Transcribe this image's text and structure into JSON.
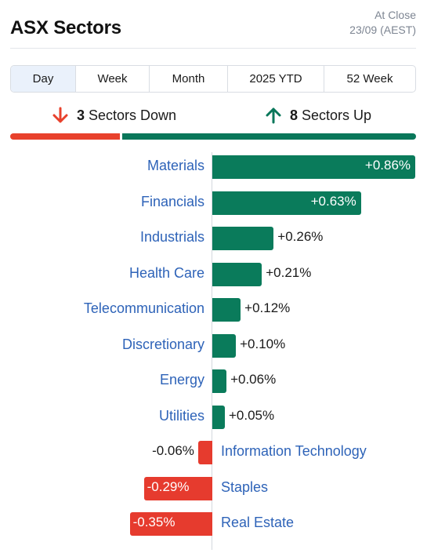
{
  "header": {
    "title": "ASX Sectors",
    "status_line1": "At Close",
    "status_line2": "23/09 (AEST)"
  },
  "tabs": [
    {
      "label": "Day",
      "active": true
    },
    {
      "label": "Week",
      "active": false
    },
    {
      "label": "Month",
      "active": false
    },
    {
      "label": "2025 YTD",
      "active": false
    },
    {
      "label": "52 Week",
      "active": false
    }
  ],
  "summary": {
    "down_count": "3",
    "down_text": "Sectors Down",
    "up_count": "8",
    "up_text": "Sectors Up",
    "down_color": "#e8412c",
    "up_color": "#09775a"
  },
  "chart_data": {
    "type": "bar",
    "orientation": "horizontal",
    "unit": "%",
    "categories": [
      "Materials",
      "Financials",
      "Industrials",
      "Health Care",
      "Telecommunication",
      "Discretionary",
      "Energy",
      "Utilities",
      "Information Technology",
      "Staples",
      "Real Estate"
    ],
    "values": [
      0.86,
      0.63,
      0.26,
      0.21,
      0.12,
      0.1,
      0.06,
      0.05,
      -0.06,
      -0.29,
      -0.35
    ],
    "value_labels": [
      "+0.86%",
      "+0.63%",
      "+0.26%",
      "+0.21%",
      "+0.12%",
      "+0.10%",
      "+0.06%",
      "+0.05%",
      "-0.06%",
      "-0.29%",
      "-0.35%"
    ],
    "positive_color": "#0a7b5b",
    "negative_color": "#e63b2e",
    "label_color": "#2e63b8"
  }
}
